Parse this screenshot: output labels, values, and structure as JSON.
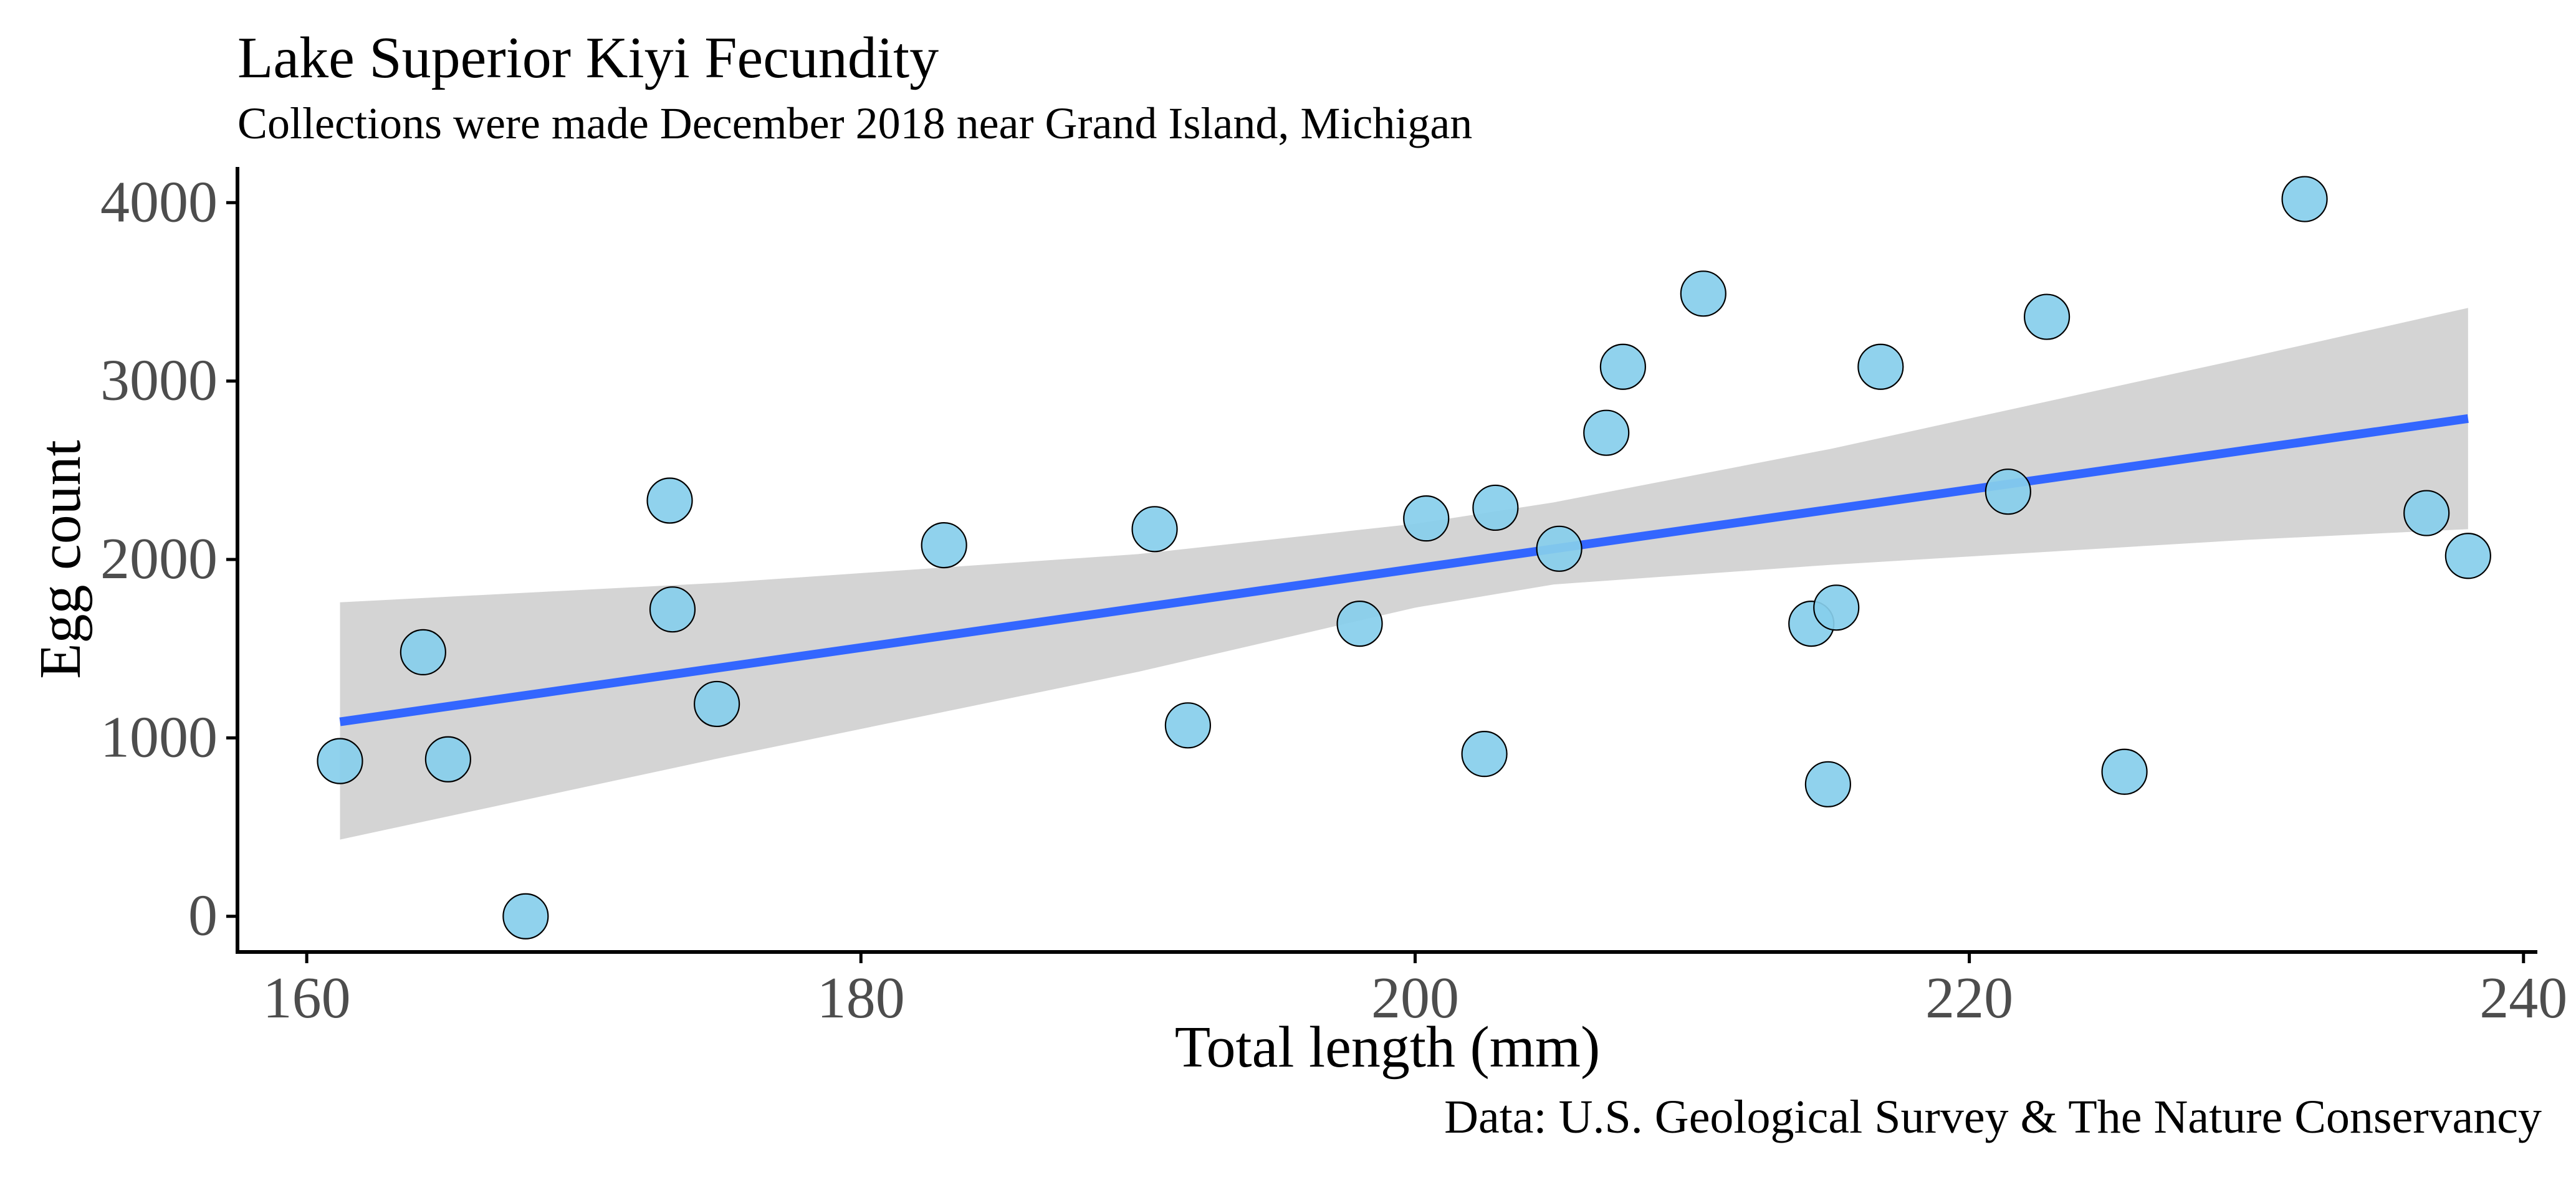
{
  "chart_data": {
    "type": "scatter",
    "title": "Lake Superior Kiyi Fecundity",
    "subtitle": "Collections were made December 2018 near Grand Island, Michigan",
    "xlabel": "Total length (mm)",
    "ylabel": "Egg count",
    "caption": "Data: U.S. Geological Survey & The Nature Conservancy",
    "xlim": [
      157.5,
      240.5
    ],
    "ylim": [
      -200,
      4200
    ],
    "xticks": [
      160,
      180,
      200,
      220,
      240
    ],
    "yticks": [
      0,
      1000,
      2000,
      3000,
      4000
    ],
    "grid": false,
    "colors": {
      "points": "#87ceeb",
      "point_outline": "#000000",
      "fit_line": "#3366ff",
      "confidence_band": "#d4d4d4",
      "axis": "#000000",
      "tick_labels": "#4d4d4d"
    },
    "points": [
      {
        "x": 161.2,
        "y": 870
      },
      {
        "x": 164.2,
        "y": 1480
      },
      {
        "x": 165.1,
        "y": 880
      },
      {
        "x": 167.9,
        "y": 0
      },
      {
        "x": 173.1,
        "y": 2330
      },
      {
        "x": 173.2,
        "y": 1720
      },
      {
        "x": 174.8,
        "y": 1190
      },
      {
        "x": 183.0,
        "y": 2080
      },
      {
        "x": 190.6,
        "y": 2170
      },
      {
        "x": 191.8,
        "y": 1070
      },
      {
        "x": 198.0,
        "y": 1640
      },
      {
        "x": 200.4,
        "y": 2230
      },
      {
        "x": 202.5,
        "y": 910
      },
      {
        "x": 202.9,
        "y": 2290
      },
      {
        "x": 205.2,
        "y": 2060
      },
      {
        "x": 206.9,
        "y": 2710
      },
      {
        "x": 207.5,
        "y": 3080
      },
      {
        "x": 210.4,
        "y": 3490
      },
      {
        "x": 214.3,
        "y": 1640
      },
      {
        "x": 214.9,
        "y": 740
      },
      {
        "x": 215.2,
        "y": 1730
      },
      {
        "x": 216.8,
        "y": 3080
      },
      {
        "x": 221.4,
        "y": 2380
      },
      {
        "x": 222.8,
        "y": 3360
      },
      {
        "x": 225.6,
        "y": 810
      },
      {
        "x": 232.1,
        "y": 4020
      },
      {
        "x": 236.5,
        "y": 2260
      },
      {
        "x": 238.0,
        "y": 2020
      }
    ],
    "fit_line": {
      "x": [
        161.2,
        238.0
      ],
      "y": [
        1090,
        2790
      ]
    },
    "confidence_band": {
      "x": [
        161.2,
        175,
        190,
        200,
        205,
        215,
        230,
        238.0
      ],
      "upper": [
        1760,
        1870,
        2030,
        2200,
        2320,
        2620,
        3130,
        3410
      ],
      "lower": [
        430,
        890,
        1370,
        1730,
        1860,
        1970,
        2110,
        2170
      ]
    }
  }
}
